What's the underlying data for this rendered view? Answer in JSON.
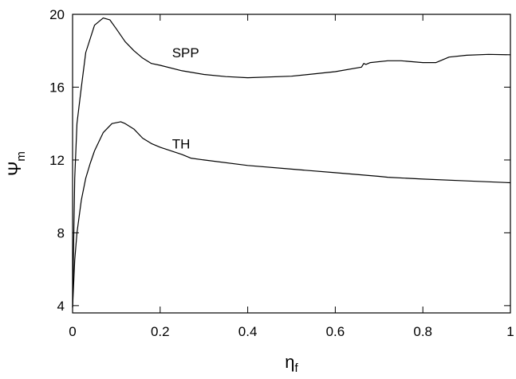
{
  "chart_data": {
    "type": "line",
    "title": "",
    "xlabel": {
      "main": "η",
      "sub": "f"
    },
    "ylabel": {
      "main": "Ψ",
      "sub": "m"
    },
    "xlim": [
      0,
      1
    ],
    "ylim": [
      3.6,
      20
    ],
    "x_ticks": [
      0,
      0.2,
      0.4,
      0.6,
      0.8,
      1
    ],
    "x_tick_labels": [
      "0",
      "0.2",
      "0.4",
      "0.6",
      "0.8",
      "1"
    ],
    "y_ticks": [
      4,
      8,
      12,
      16,
      20
    ],
    "y_tick_labels": [
      "4",
      "8",
      "12",
      "16",
      "20"
    ],
    "grid": false,
    "legend": "none",
    "series": [
      {
        "name": "SPP",
        "x": [
          0,
          0.005,
          0.01,
          0.02,
          0.03,
          0.05,
          0.07,
          0.085,
          0.1,
          0.12,
          0.14,
          0.16,
          0.18,
          0.2,
          0.25,
          0.3,
          0.35,
          0.4,
          0.5,
          0.6,
          0.66,
          0.665,
          0.67,
          0.68,
          0.72,
          0.75,
          0.8,
          0.83,
          0.86,
          0.9,
          0.95,
          1.0
        ],
        "y": [
          3.9,
          11.0,
          14.0,
          16.0,
          17.9,
          19.4,
          19.8,
          19.7,
          19.2,
          18.5,
          18.0,
          17.6,
          17.3,
          17.2,
          16.9,
          16.7,
          16.58,
          16.52,
          16.6,
          16.85,
          17.1,
          17.3,
          17.25,
          17.35,
          17.45,
          17.45,
          17.35,
          17.35,
          17.65,
          17.75,
          17.8,
          17.78
        ]
      },
      {
        "name": "TH",
        "x": [
          0,
          0.005,
          0.01,
          0.02,
          0.03,
          0.04,
          0.05,
          0.07,
          0.09,
          0.11,
          0.12,
          0.14,
          0.16,
          0.18,
          0.2,
          0.25,
          0.27,
          0.3,
          0.4,
          0.5,
          0.6,
          0.7,
          0.72,
          0.8,
          0.9,
          1.0
        ],
        "y": [
          3.9,
          6.5,
          8.0,
          9.8,
          11.0,
          11.8,
          12.5,
          13.5,
          14.0,
          14.1,
          14.0,
          13.7,
          13.2,
          12.9,
          12.7,
          12.3,
          12.1,
          12.0,
          11.7,
          11.5,
          11.3,
          11.1,
          11.05,
          10.95,
          10.85,
          10.75
        ]
      }
    ],
    "annotations": [
      {
        "text": "SPP",
        "x": 0.3,
        "y": 17.9
      },
      {
        "text": "TH",
        "x": 0.3,
        "y": 12.9
      }
    ]
  }
}
